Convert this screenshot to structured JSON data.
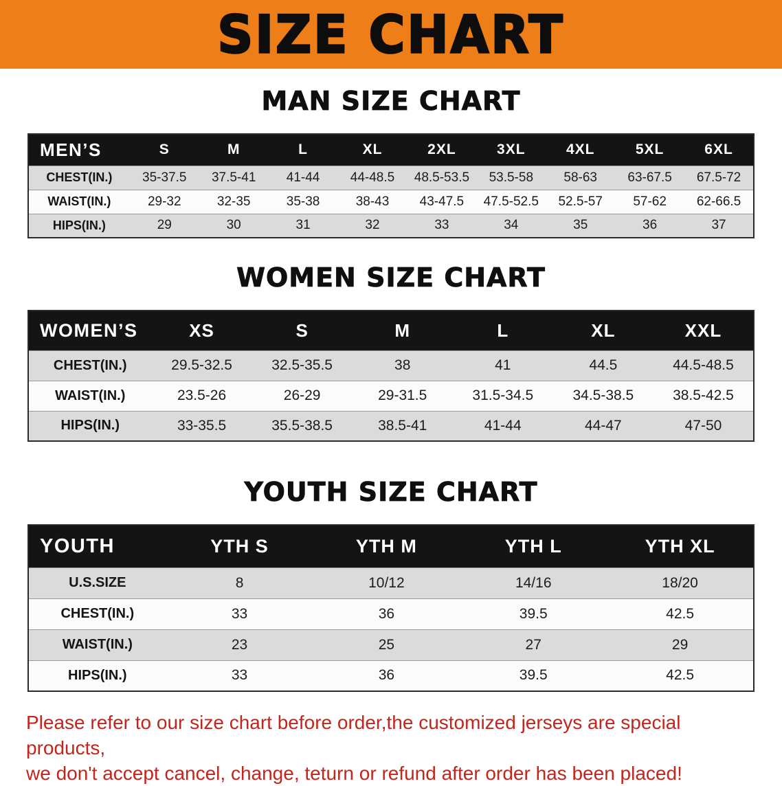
{
  "banner": {
    "title": "SIZE CHART"
  },
  "colors": {
    "banner_bg": "#EE7E18",
    "table_header_bg": "#141414",
    "shaded_row_bg": "#DBDBDB",
    "disclaimer_text": "#C3251C"
  },
  "sections": [
    {
      "heading": "MAN SIZE CHART",
      "table": {
        "header": [
          "MEN’S",
          "S",
          "M",
          "L",
          "XL",
          "2XL",
          "3XL",
          "4XL",
          "5XL",
          "6XL"
        ],
        "rows": [
          [
            "CHEST(IN.)",
            "35-37.5",
            "37.5-41",
            "41-44",
            "44-48.5",
            "48.5-53.5",
            "53.5-58",
            "58-63",
            "63-67.5",
            "67.5-72"
          ],
          [
            "WAIST(IN.)",
            "29-32",
            "32-35",
            "35-38",
            "38-43",
            "43-47.5",
            "47.5-52.5",
            "52.5-57",
            "57-62",
            "62-66.5"
          ],
          [
            "HIPS(IN.)",
            "29",
            "30",
            "31",
            "32",
            "33",
            "34",
            "35",
            "36",
            "37"
          ]
        ]
      }
    },
    {
      "heading": "WOMEN SIZE CHART",
      "table": {
        "header": [
          "WOMEN’S",
          "XS",
          "S",
          "M",
          "L",
          "XL",
          "XXL"
        ],
        "rows": [
          [
            "CHEST(IN.)",
            "29.5-32.5",
            "32.5-35.5",
            "38",
            "41",
            "44.5",
            "44.5-48.5"
          ],
          [
            "WAIST(IN.)",
            "23.5-26",
            "26-29",
            "29-31.5",
            "31.5-34.5",
            "34.5-38.5",
            "38.5-42.5"
          ],
          [
            "HIPS(IN.)",
            "33-35.5",
            "35.5-38.5",
            "38.5-41",
            "41-44",
            "44-47",
            "47-50"
          ]
        ]
      }
    },
    {
      "heading": "YOUTH SIZE CHART",
      "table": {
        "header": [
          "YOUTH",
          "YTH S",
          "YTH M",
          "YTH L",
          "YTH XL"
        ],
        "rows": [
          [
            "U.S.SIZE",
            "8",
            "10/12",
            "14/16",
            "18/20"
          ],
          [
            "CHEST(IN.)",
            "33",
            "36",
            "39.5",
            "42.5"
          ],
          [
            "WAIST(IN.)",
            "23",
            "25",
            "27",
            "29"
          ],
          [
            "HIPS(IN.)",
            "33",
            "36",
            "39.5",
            "42.5"
          ]
        ]
      }
    }
  ],
  "footer": {
    "line1": "Please refer to our size chart before order,the customized jerseys are special products,",
    "line2": "we don't accept cancel, change, teturn or refund after order has been placed!"
  }
}
